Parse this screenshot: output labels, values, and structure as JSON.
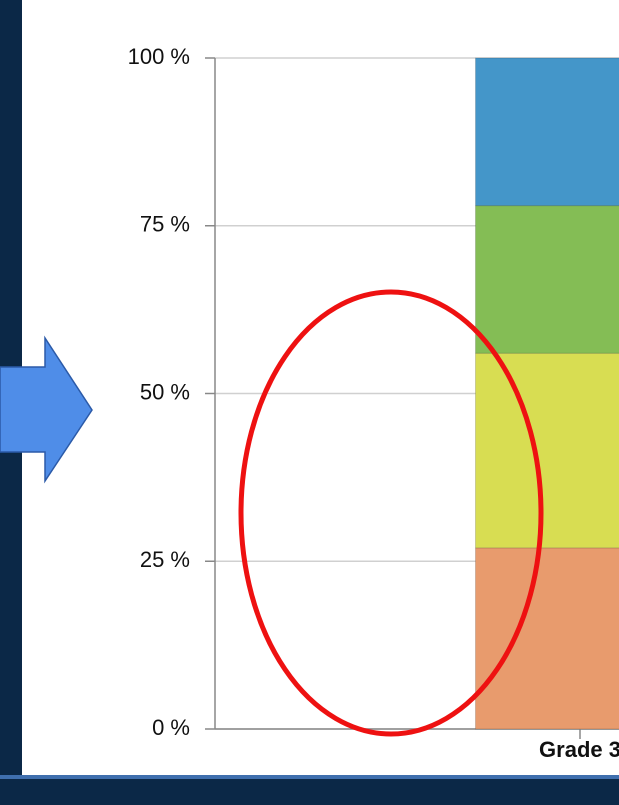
{
  "chart_data": {
    "type": "stacked_bar",
    "categories": [
      "Grade 3"
    ],
    "series": [
      {
        "color": "#e89b6d",
        "values": [
          27
        ]
      },
      {
        "color": "#d8dd52",
        "values": [
          29
        ]
      },
      {
        "color": "#84bd55",
        "values": [
          22
        ]
      },
      {
        "color": "#4496c9",
        "values": [
          22
        ]
      }
    ],
    "ylim": [
      0,
      100
    ],
    "yticks": [
      {
        "value": 0,
        "label": "0 %"
      },
      {
        "value": 25,
        "label": "25 %"
      },
      {
        "value": 50,
        "label": "50 %"
      },
      {
        "value": 75,
        "label": "75 %"
      },
      {
        "value": 100,
        "label": "100 %"
      }
    ],
    "grid": true
  }
}
